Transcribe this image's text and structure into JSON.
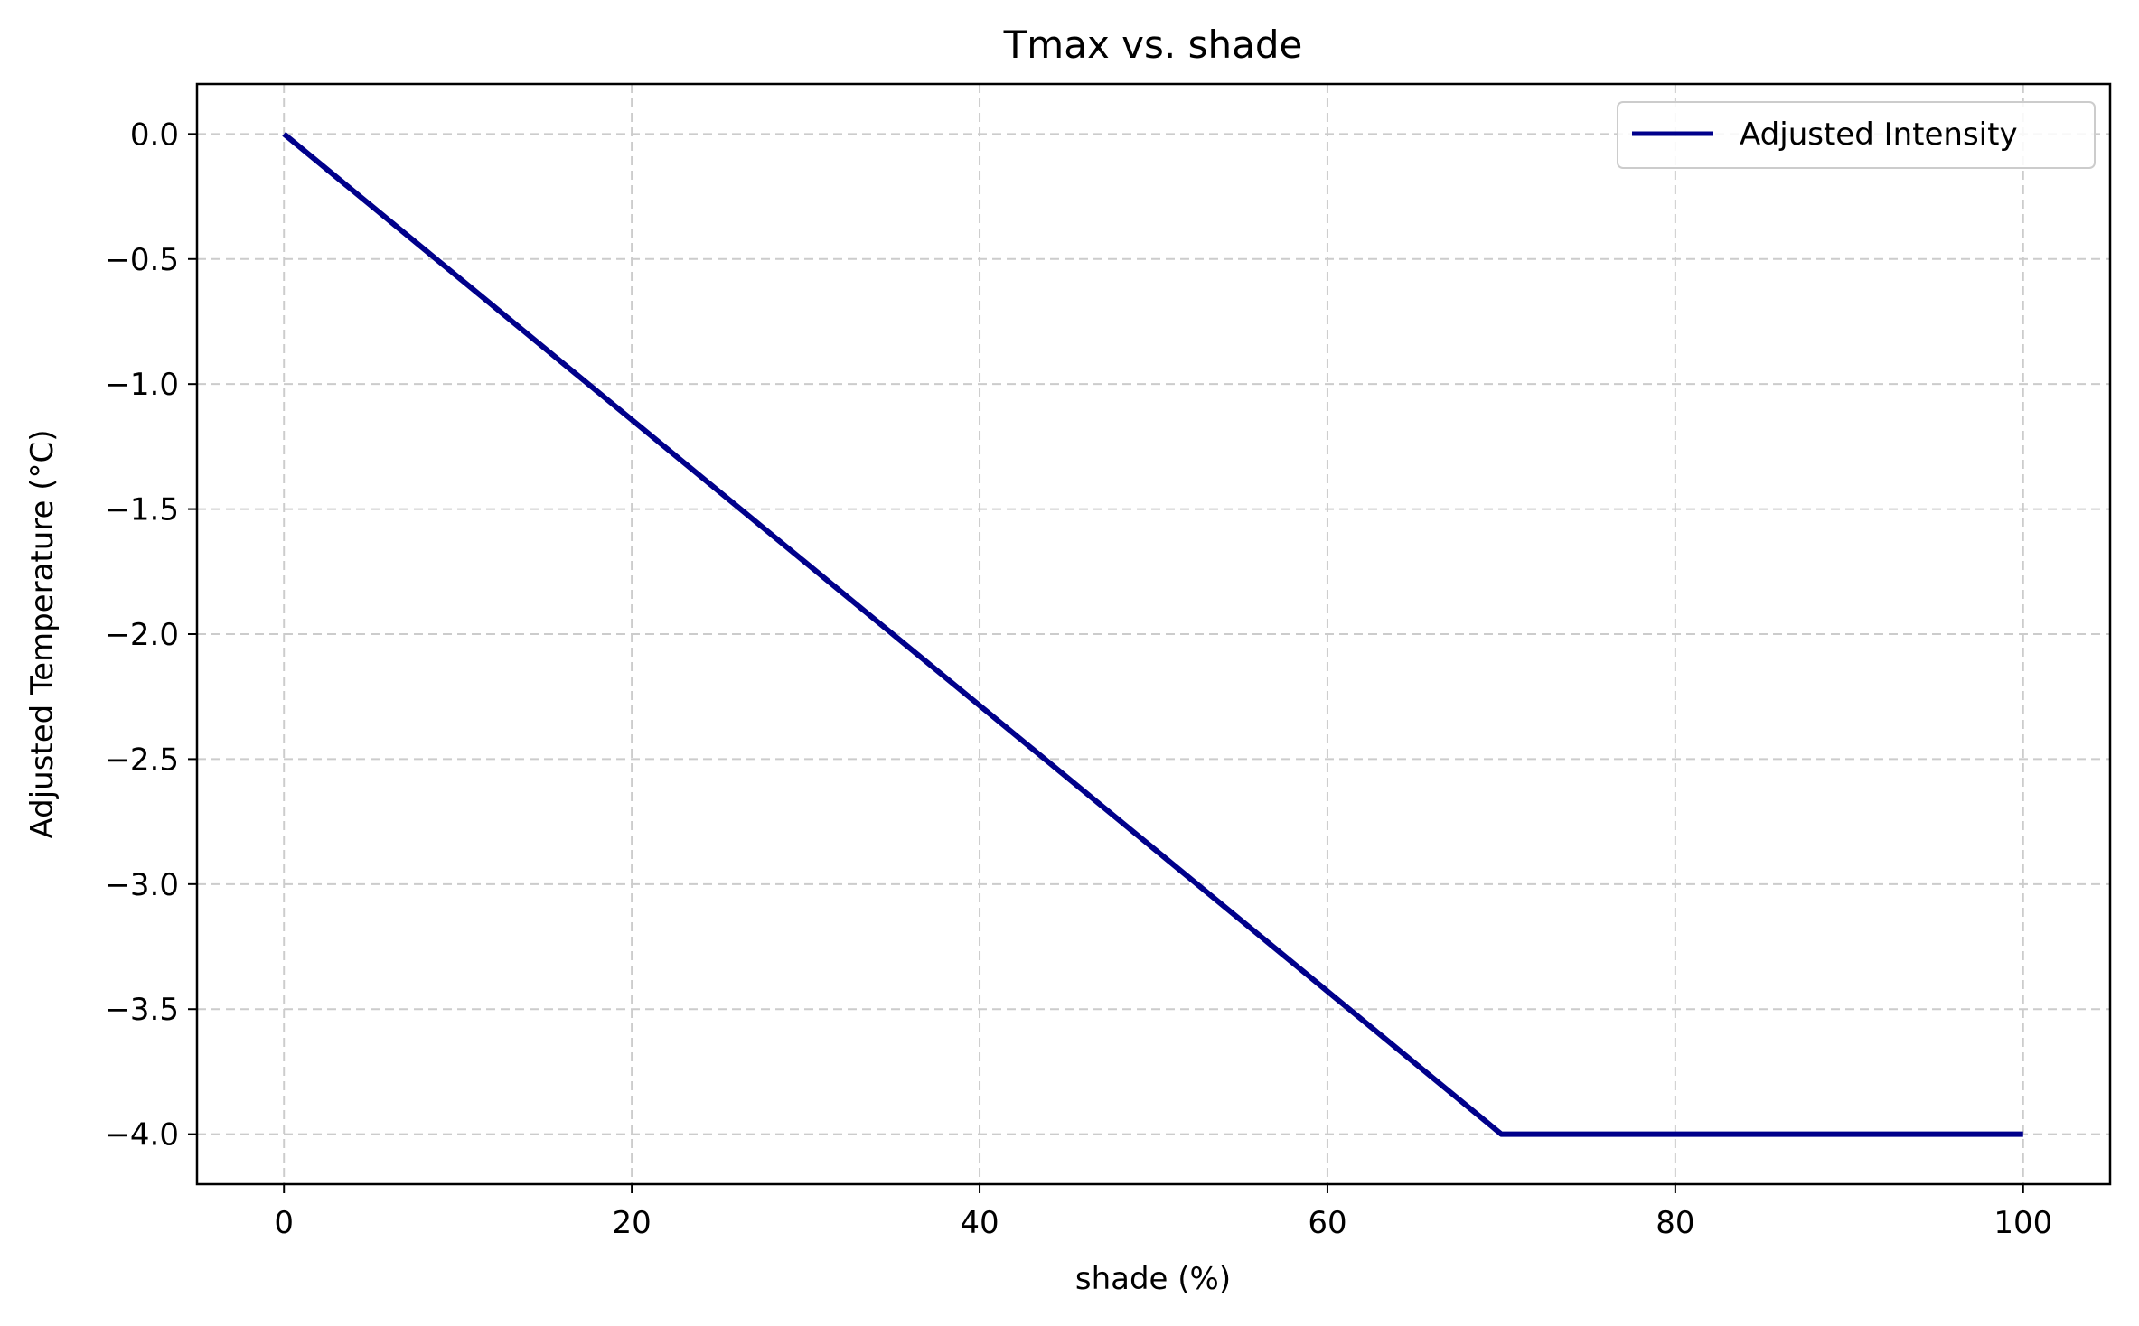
{
  "chart_data": {
    "type": "line",
    "title": "Tmax vs. shade",
    "xlabel": "shade (%)",
    "ylabel": "Adjusted Temperature (°C)",
    "xlim": [
      -5,
      105
    ],
    "ylim": [
      -4.2,
      0.2
    ],
    "xticks": [
      0,
      20,
      40,
      60,
      80,
      100
    ],
    "xtick_labels": [
      "0",
      "20",
      "40",
      "60",
      "80",
      "100"
    ],
    "yticks": [
      0.0,
      -0.5,
      -1.0,
      -1.5,
      -2.0,
      -2.5,
      -3.0,
      -3.5,
      -4.0
    ],
    "ytick_labels": [
      "0.0",
      "−0.5",
      "−1.0",
      "−1.5",
      "−2.0",
      "−2.5",
      "−3.0",
      "−3.5",
      "−4.0"
    ],
    "grid": true,
    "legend_position": "upper-right",
    "series": [
      {
        "name": "Adjusted Intensity",
        "color": "#00008b",
        "x": [
          0,
          70,
          100
        ],
        "y": [
          0.0,
          -4.0,
          -4.0
        ]
      }
    ]
  }
}
